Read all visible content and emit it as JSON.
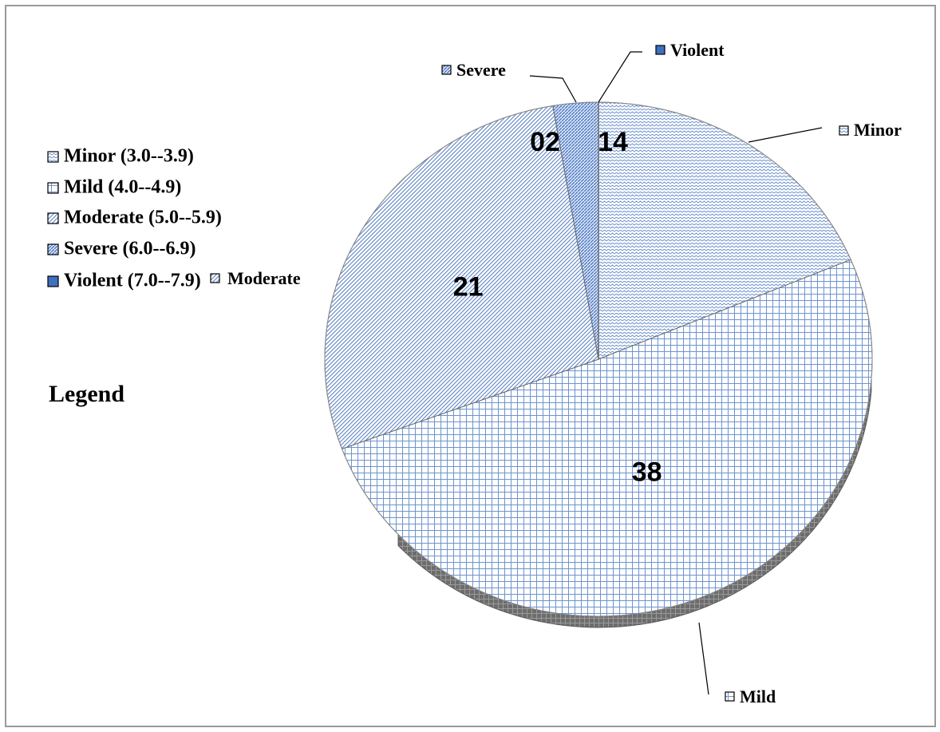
{
  "chart_data": {
    "type": "pie",
    "categories": [
      "Minor",
      "Mild",
      "Moderate",
      "Severe",
      "Violent"
    ],
    "values": [
      14,
      38,
      21,
      2,
      0
    ],
    "data_labels": [
      "14",
      "38",
      "21",
      "02",
      ""
    ],
    "callout_labels": [
      "Minor",
      "Mild",
      "Moderate",
      "Severe",
      "Violent"
    ],
    "legend": {
      "title": "Legend",
      "entries": [
        "Minor (3.0--3.9)",
        "Mild (4.0--4.9)",
        "Moderate (5.0--5.9)",
        "Severe (6.0--6.9)",
        "Violent (7.0--7.9)"
      ],
      "placement": "left"
    },
    "style": "3d-pie",
    "patterns": [
      "zigzag",
      "grid",
      "diagonal-stripes",
      "dense-stripes",
      "solid"
    ],
    "colors": {
      "minor": "#6f93cf",
      "mild": "#6f93cf",
      "moderate": "#5b82c4",
      "severe": "#4f7bc6",
      "violent": "#3f6fbf",
      "edge": "#6a6a6a",
      "shadow": "#5a5a5a"
    }
  }
}
